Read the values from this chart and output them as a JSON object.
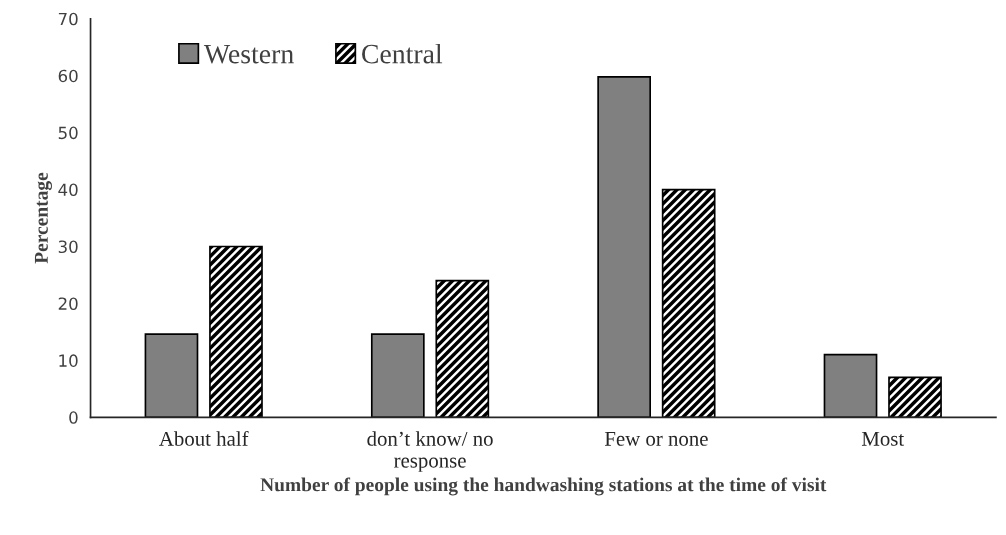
{
  "chart_data": {
    "type": "bar",
    "xlabel": "Number of people using the handwashing stations at the time of visit",
    "ylabel": "Percentage",
    "categories": [
      "About half",
      "don’t know/ no response",
      "Few or none",
      "Most"
    ],
    "series": [
      {
        "name": "Western",
        "color": "#808080",
        "values": [
          14.6,
          14.6,
          59.8,
          11
        ]
      },
      {
        "name": "Central",
        "color": "#000000",
        "values": [
          30,
          24,
          40,
          7
        ]
      }
    ],
    "ylim": [
      0,
      70
    ],
    "yticks": [
      0,
      10,
      20,
      30,
      40,
      50,
      60,
      70
    ],
    "grid": false,
    "legend": "top left"
  }
}
